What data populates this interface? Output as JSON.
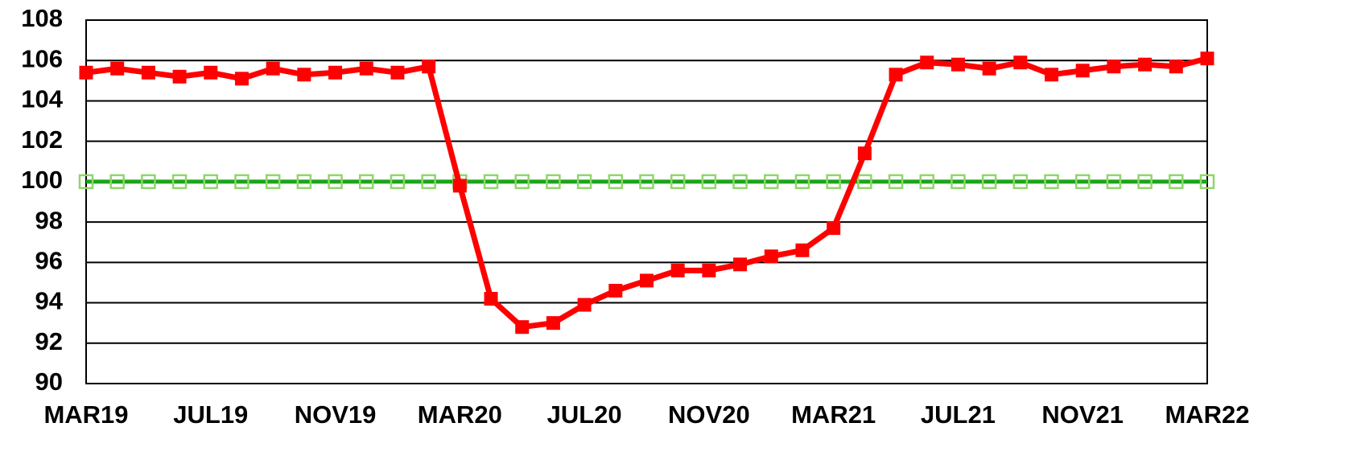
{
  "chart_data": {
    "type": "line",
    "categories": [
      "MAR19",
      null,
      null,
      null,
      "JUL19",
      null,
      null,
      null,
      "NOV19",
      null,
      null,
      null,
      "MAR20",
      null,
      null,
      null,
      "JUL20",
      null,
      null,
      null,
      "NOV20",
      null,
      null,
      null,
      "MAR21",
      null,
      null,
      null,
      "JUL21",
      null,
      null,
      null,
      "NOV21",
      null,
      null,
      null,
      "MAR22"
    ],
    "series": [
      {
        "color": "#ff0000",
        "marker": "filled-square",
        "values": [
          105.4,
          105.6,
          105.4,
          105.2,
          105.4,
          105.1,
          105.6,
          105.3,
          105.4,
          105.6,
          105.4,
          105.7,
          99.8,
          94.2,
          92.8,
          93.0,
          93.9,
          94.6,
          95.1,
          95.6,
          95.6,
          95.9,
          96.3,
          96.6,
          97.7,
          101.4,
          105.3,
          105.9,
          105.8,
          105.6,
          105.9,
          105.3,
          105.5,
          105.7,
          105.8,
          105.7,
          106.1
        ]
      },
      {
        "color": "#1aa51a",
        "marker_color": "#8fd66a",
        "marker": "hollow-square",
        "values": [
          100,
          100,
          100,
          100,
          100,
          100,
          100,
          100,
          100,
          100,
          100,
          100,
          100,
          100,
          100,
          100,
          100,
          100,
          100,
          100,
          100,
          100,
          100,
          100,
          100,
          100,
          100,
          100,
          100,
          100,
          100,
          100,
          100,
          100,
          100,
          100,
          100
        ]
      }
    ],
    "ylim": [
      90,
      108
    ],
    "yticks": [
      90,
      92,
      94,
      96,
      98,
      100,
      102,
      104,
      106,
      108
    ],
    "grid": true
  }
}
